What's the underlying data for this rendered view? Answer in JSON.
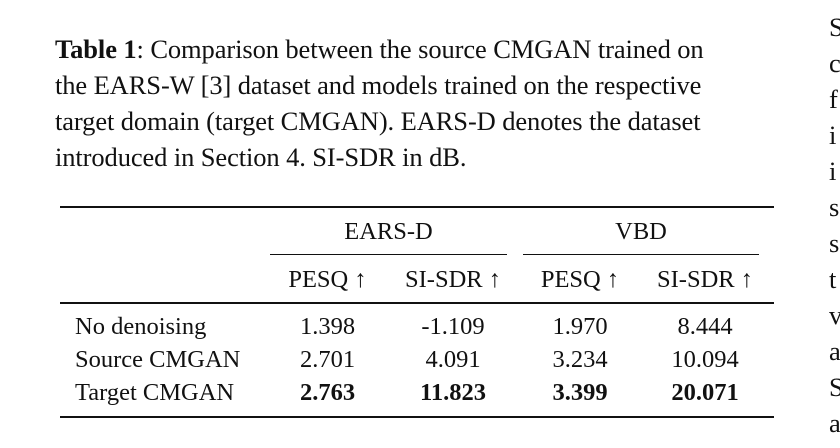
{
  "caption": {
    "label": "Table 1",
    "lines": [
      ": Comparison between the source CMGAN trained on",
      "the EARS-W [3] dataset and models trained on the respective",
      "target domain (target CMGAN). EARS-D denotes the dataset",
      "introduced in Section 4. SI-SDR in dB."
    ]
  },
  "edge_column": [
    "S",
    "c",
    "f",
    "i",
    "i",
    "s",
    "s",
    "t",
    "v",
    "a",
    "S",
    "a",
    "s"
  ],
  "table": {
    "groups": [
      "EARS-D",
      "VBD"
    ],
    "columns": [
      "PESQ ↑",
      "SI-SDR ↑",
      "PESQ ↑",
      "SI-SDR ↑"
    ],
    "rows": [
      {
        "label": "No denoising",
        "values": [
          "1.398",
          "-1.109",
          "1.970",
          "8.444"
        ],
        "bold": false
      },
      {
        "label": "Source CMGAN",
        "values": [
          "2.701",
          "4.091",
          "3.234",
          "10.094"
        ],
        "bold": false
      },
      {
        "label": "Target CMGAN",
        "values": [
          "2.763",
          "11.823",
          "3.399",
          "20.071"
        ],
        "bold": true
      }
    ]
  }
}
